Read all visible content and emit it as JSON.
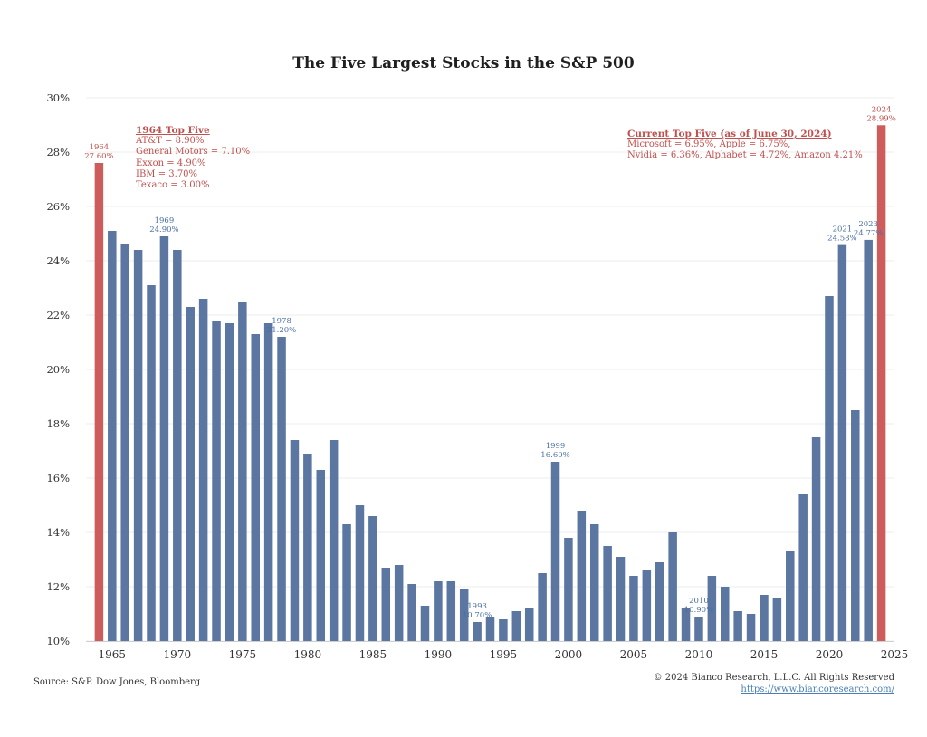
{
  "chart_data": {
    "type": "bar",
    "title": "The Five Largest Stocks in the S&P 500",
    "xlabel": "",
    "ylabel": "",
    "ylim": [
      10,
      30
    ],
    "xlim": [
      1963,
      2025
    ],
    "y_ticks": [
      "10%",
      "12%",
      "14%",
      "16%",
      "18%",
      "20%",
      "22%",
      "24%",
      "26%",
      "28%",
      "30%"
    ],
    "x_ticks": [
      "1965",
      "1970",
      "1975",
      "1980",
      "1985",
      "1990",
      "1995",
      "2000",
      "2005",
      "2010",
      "2015",
      "2020",
      "2025"
    ],
    "grid": true,
    "colors": {
      "bar": "#5a76a1",
      "highlight": "#cd5c5c",
      "label_blue": "#4a6fa5",
      "label_red": "#c0504d"
    },
    "series": [
      {
        "x": [
          1964,
          1965,
          1966,
          1967,
          1968,
          1969,
          1970,
          1971,
          1972,
          1973,
          1974,
          1975,
          1976,
          1977,
          1978,
          1979,
          1980,
          1981,
          1982,
          1983,
          1984,
          1985,
          1986,
          1987,
          1988,
          1989,
          1990,
          1991,
          1992,
          1993,
          1994,
          1995,
          1996,
          1997,
          1998,
          1999,
          2000,
          2001,
          2002,
          2003,
          2004,
          2005,
          2006,
          2007,
          2008,
          2009,
          2010,
          2011,
          2012,
          2013,
          2014,
          2015,
          2016,
          2017,
          2018,
          2019,
          2020,
          2021,
          2022,
          2023,
          2024
        ],
        "values": [
          27.6,
          25.1,
          24.6,
          24.4,
          23.1,
          24.9,
          24.4,
          22.3,
          22.6,
          21.8,
          21.7,
          22.5,
          21.3,
          21.7,
          21.2,
          17.4,
          16.9,
          16.3,
          17.4,
          14.3,
          15.0,
          14.6,
          12.7,
          12.8,
          12.1,
          11.3,
          12.2,
          12.2,
          11.9,
          10.7,
          10.9,
          10.8,
          11.1,
          11.2,
          12.5,
          16.6,
          13.8,
          14.8,
          14.3,
          13.5,
          13.1,
          12.4,
          12.6,
          12.9,
          14.0,
          11.2,
          10.9,
          12.4,
          12.0,
          11.1,
          11.0,
          11.7,
          11.6,
          13.3,
          15.4,
          17.5,
          22.7,
          24.58,
          18.5,
          24.77,
          28.99
        ]
      }
    ],
    "highlight_years": [
      1964,
      2024
    ],
    "bar_labels": [
      {
        "year": 1964,
        "line1": "1964",
        "line2": "27.60%",
        "color": "red"
      },
      {
        "year": 1969,
        "line1": "1969",
        "line2": "24.90%",
        "color": "blue"
      },
      {
        "year": 1978,
        "line1": "1978",
        "line2": "21.20%",
        "color": "blue"
      },
      {
        "year": 1993,
        "line1": "1993",
        "line2": "10.70%",
        "color": "blue"
      },
      {
        "year": 1999,
        "line1": "1999",
        "line2": "16.60%",
        "color": "blue"
      },
      {
        "year": 2010,
        "line1": "2010",
        "line2": "10.90%",
        "color": "blue"
      },
      {
        "year": 2021,
        "line1": "2021",
        "line2": "24.58%",
        "color": "blue"
      },
      {
        "year": 2023,
        "line1": "2023",
        "line2": "24.77%",
        "color": "blue"
      },
      {
        "year": 2024,
        "line1": "2024",
        "line2": "28.99%",
        "color": "red"
      }
    ],
    "annotations": {
      "left": {
        "heading": "1964 Top Five",
        "lines": [
          "AT&T = 8.90%",
          "General Motors = 7.10%",
          "Exxon = 4.90%",
          "IBM = 3.70%",
          "Texaco = 3.00%"
        ]
      },
      "right": {
        "heading": "Current Top Five (as of June 30, 2024)",
        "lines": [
          "Microsoft = 6.95%, Apple = 6.75%,",
          "Nvidia = 6.36%, Alphabet = 4.72%, Amazon 4.21%"
        ]
      }
    }
  },
  "footer": {
    "source": "Source: S&P. Dow Jones, Bloomberg",
    "copyright": "© 2024 Bianco Research, L.L.C. All Rights Reserved",
    "url": "https://www.biancoresearch.com/"
  }
}
